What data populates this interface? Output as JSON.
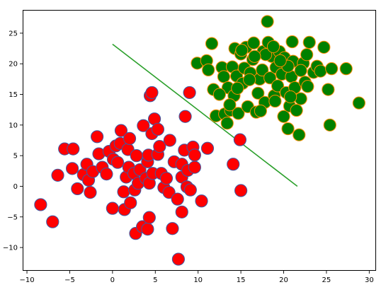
{
  "chart_data": {
    "type": "scatter",
    "title": "",
    "xlabel": "",
    "ylabel": "",
    "xlim": [
      -10.5,
      30.8
    ],
    "ylim": [
      -13.8,
      28.8
    ],
    "grid": false,
    "x_ticks": [
      -10,
      -5,
      0,
      5,
      10,
      15,
      20,
      25,
      30
    ],
    "y_ticks": [
      -10,
      -5,
      0,
      5,
      10,
      15,
      20,
      25
    ],
    "x_tick_labels": [
      "−10",
      "−5",
      "0",
      "5",
      "10",
      "15",
      "20",
      "25",
      "30"
    ],
    "y_tick_labels": [
      "−10",
      "−5",
      "0",
      "5",
      "10",
      "15",
      "20",
      "25"
    ],
    "series": [
      {
        "color": "#ff0000",
        "edge_color": "#3b5ba6",
        "points": [
          [
            -8.4,
            -3.0
          ],
          [
            -7.0,
            -5.8
          ],
          [
            -6.4,
            1.8
          ],
          [
            -5.6,
            6.1
          ],
          [
            -4.6,
            6.1
          ],
          [
            -4.7,
            2.9
          ],
          [
            -4.1,
            -0.4
          ],
          [
            -3.4,
            1.9
          ],
          [
            -3.0,
            3.6
          ],
          [
            -2.8,
            1.0
          ],
          [
            -2.6,
            -1.0
          ],
          [
            -2.3,
            2.4
          ],
          [
            -1.8,
            8.1
          ],
          [
            -1.6,
            5.3
          ],
          [
            -1.2,
            3.1
          ],
          [
            -0.7,
            2.0
          ],
          [
            -0.4,
            5.7
          ],
          [
            0.1,
            4.4
          ],
          [
            0.0,
            -3.6
          ],
          [
            0.6,
            3.9
          ],
          [
            0.4,
            6.6
          ],
          [
            0.9,
            7.0
          ],
          [
            1.0,
            9.1
          ],
          [
            1.3,
            -0.9
          ],
          [
            1.4,
            -3.8
          ],
          [
            1.6,
            1.5
          ],
          [
            1.8,
            6.0
          ],
          [
            1.9,
            3.1
          ],
          [
            2.1,
            -2.7
          ],
          [
            2.0,
            7.8
          ],
          [
            2.5,
            2.1
          ],
          [
            2.6,
            -0.6
          ],
          [
            2.7,
            -7.7
          ],
          [
            2.8,
            5.0
          ],
          [
            3.0,
            0.5
          ],
          [
            3.2,
            2.7
          ],
          [
            3.5,
            -6.6
          ],
          [
            3.6,
            9.9
          ],
          [
            3.9,
            1.3
          ],
          [
            4.1,
            -7.0
          ],
          [
            4.1,
            4.0
          ],
          [
            4.2,
            5.1
          ],
          [
            4.3,
            -5.1
          ],
          [
            4.3,
            0.5
          ],
          [
            4.4,
            14.8
          ],
          [
            4.6,
            15.3
          ],
          [
            4.6,
            8.6
          ],
          [
            4.7,
            2.1
          ],
          [
            4.9,
            11.0
          ],
          [
            5.3,
            9.3
          ],
          [
            5.3,
            5.2
          ],
          [
            5.5,
            6.5
          ],
          [
            5.7,
            2.1
          ],
          [
            6.0,
            -0.2
          ],
          [
            6.3,
            1.3
          ],
          [
            6.6,
            -1.0
          ],
          [
            6.7,
            7.5
          ],
          [
            7.0,
            -6.9
          ],
          [
            7.2,
            4.0
          ],
          [
            7.6,
            -2.1
          ],
          [
            7.7,
            -11.9
          ],
          [
            8.1,
            -4.2
          ],
          [
            8.1,
            1.5
          ],
          [
            8.1,
            3.6
          ],
          [
            8.4,
            5.9
          ],
          [
            8.5,
            11.4
          ],
          [
            8.7,
            -0.1
          ],
          [
            8.8,
            2.6
          ],
          [
            9.0,
            15.3
          ],
          [
            9.1,
            -0.6
          ],
          [
            9.4,
            6.4
          ],
          [
            9.6,
            5.1
          ],
          [
            9.6,
            3.1
          ],
          [
            10.4,
            -2.4
          ],
          [
            11.1,
            6.2
          ],
          [
            14.1,
            3.6
          ],
          [
            14.9,
            7.6
          ],
          [
            15.0,
            -0.7
          ]
        ]
      },
      {
        "color": "#008000",
        "edge_color": "#ff8c00",
        "points": [
          [
            9.9,
            20.1
          ],
          [
            11.0,
            20.5
          ],
          [
            11.2,
            19.0
          ],
          [
            11.6,
            23.3
          ],
          [
            11.8,
            15.8
          ],
          [
            12.1,
            11.5
          ],
          [
            12.8,
            19.4
          ],
          [
            13.0,
            17.9
          ],
          [
            13.1,
            11.8
          ],
          [
            13.4,
            10.3
          ],
          [
            13.5,
            16.1
          ],
          [
            13.8,
            12.4
          ],
          [
            14.0,
            19.5
          ],
          [
            14.2,
            14.8
          ],
          [
            14.3,
            22.5
          ],
          [
            14.5,
            18.0
          ],
          [
            14.7,
            11.9
          ],
          [
            15.0,
            21.6
          ],
          [
            15.2,
            16.8
          ],
          [
            15.4,
            19.3
          ],
          [
            15.6,
            22.7
          ],
          [
            15.8,
            13.0
          ],
          [
            16.1,
            18.5
          ],
          [
            16.4,
            20.7
          ],
          [
            16.5,
            23.4
          ],
          [
            16.8,
            12.1
          ],
          [
            17.0,
            15.2
          ],
          [
            17.2,
            17.5
          ],
          [
            17.5,
            19.0
          ],
          [
            17.6,
            22.0
          ],
          [
            17.8,
            13.7
          ],
          [
            18.1,
            26.9
          ],
          [
            18.2,
            23.5
          ],
          [
            18.4,
            17.7
          ],
          [
            18.6,
            21.2
          ],
          [
            18.9,
            14.8
          ],
          [
            19.1,
            19.4
          ],
          [
            19.3,
            16.4
          ],
          [
            19.5,
            22.0
          ],
          [
            19.8,
            18.3
          ],
          [
            20.0,
            11.4
          ],
          [
            20.1,
            21.0
          ],
          [
            20.3,
            15.3
          ],
          [
            20.5,
            9.4
          ],
          [
            20.7,
            13.1
          ],
          [
            20.9,
            17.9
          ],
          [
            21.1,
            20.4
          ],
          [
            21.3,
            16.1
          ],
          [
            21.5,
            12.4
          ],
          [
            21.8,
            8.4
          ],
          [
            22.0,
            14.3
          ],
          [
            22.3,
            20.1
          ],
          [
            22.5,
            17.0
          ],
          [
            22.7,
            21.5
          ],
          [
            23.0,
            23.5
          ],
          [
            23.5,
            18.6
          ],
          [
            23.9,
            19.6
          ],
          [
            24.3,
            18.8
          ],
          [
            24.7,
            22.7
          ],
          [
            25.2,
            15.8
          ],
          [
            25.4,
            10.0
          ],
          [
            25.6,
            19.2
          ],
          [
            27.3,
            19.2
          ],
          [
            28.8,
            13.6
          ],
          [
            16.0,
            17.4
          ],
          [
            19.0,
            13.9
          ],
          [
            20.5,
            19.6
          ],
          [
            12.5,
            15.0
          ],
          [
            13.7,
            13.3
          ],
          [
            17.9,
            21.5
          ],
          [
            20.8,
            14.6
          ],
          [
            22.8,
            16.3
          ],
          [
            15.1,
            22.2
          ],
          [
            16.6,
            21.2
          ],
          [
            18.8,
            22.8
          ],
          [
            21.0,
            23.6
          ],
          [
            19.6,
            20.5
          ],
          [
            14.6,
            16.0
          ],
          [
            17.3,
            12.3
          ],
          [
            22.0,
            18.9
          ]
        ]
      }
    ],
    "line": {
      "color": "#2ca02c",
      "points": [
        [
          0.0,
          23.2
        ],
        [
          21.6,
          0.0
        ]
      ]
    }
  }
}
